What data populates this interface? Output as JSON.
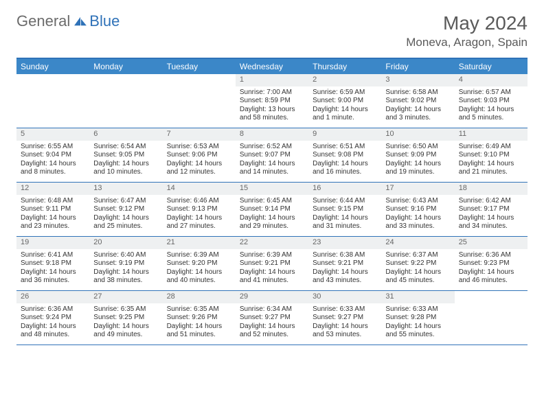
{
  "brand": {
    "part1": "General",
    "part2": "Blue"
  },
  "title": "May 2024",
  "location": "Moneva, Aragon, Spain",
  "colors": {
    "accent": "#3b87c8",
    "accent_dark": "#2f72b8",
    "daynum_bg": "#eef0f1",
    "text": "#333333",
    "muted": "#6b6b6b"
  },
  "dow": [
    "Sunday",
    "Monday",
    "Tuesday",
    "Wednesday",
    "Thursday",
    "Friday",
    "Saturday"
  ],
  "weeks": [
    [
      {
        "empty": true
      },
      {
        "empty": true
      },
      {
        "empty": true
      },
      {
        "n": "1",
        "sunrise": "7:00 AM",
        "sunset": "8:59 PM",
        "daylight": "13 hours and 58 minutes."
      },
      {
        "n": "2",
        "sunrise": "6:59 AM",
        "sunset": "9:00 PM",
        "daylight": "14 hours and 1 minute."
      },
      {
        "n": "3",
        "sunrise": "6:58 AM",
        "sunset": "9:02 PM",
        "daylight": "14 hours and 3 minutes."
      },
      {
        "n": "4",
        "sunrise": "6:57 AM",
        "sunset": "9:03 PM",
        "daylight": "14 hours and 5 minutes."
      }
    ],
    [
      {
        "n": "5",
        "sunrise": "6:55 AM",
        "sunset": "9:04 PM",
        "daylight": "14 hours and 8 minutes."
      },
      {
        "n": "6",
        "sunrise": "6:54 AM",
        "sunset": "9:05 PM",
        "daylight": "14 hours and 10 minutes."
      },
      {
        "n": "7",
        "sunrise": "6:53 AM",
        "sunset": "9:06 PM",
        "daylight": "14 hours and 12 minutes."
      },
      {
        "n": "8",
        "sunrise": "6:52 AM",
        "sunset": "9:07 PM",
        "daylight": "14 hours and 14 minutes."
      },
      {
        "n": "9",
        "sunrise": "6:51 AM",
        "sunset": "9:08 PM",
        "daylight": "14 hours and 16 minutes."
      },
      {
        "n": "10",
        "sunrise": "6:50 AM",
        "sunset": "9:09 PM",
        "daylight": "14 hours and 19 minutes."
      },
      {
        "n": "11",
        "sunrise": "6:49 AM",
        "sunset": "9:10 PM",
        "daylight": "14 hours and 21 minutes."
      }
    ],
    [
      {
        "n": "12",
        "sunrise": "6:48 AM",
        "sunset": "9:11 PM",
        "daylight": "14 hours and 23 minutes."
      },
      {
        "n": "13",
        "sunrise": "6:47 AM",
        "sunset": "9:12 PM",
        "daylight": "14 hours and 25 minutes."
      },
      {
        "n": "14",
        "sunrise": "6:46 AM",
        "sunset": "9:13 PM",
        "daylight": "14 hours and 27 minutes."
      },
      {
        "n": "15",
        "sunrise": "6:45 AM",
        "sunset": "9:14 PM",
        "daylight": "14 hours and 29 minutes."
      },
      {
        "n": "16",
        "sunrise": "6:44 AM",
        "sunset": "9:15 PM",
        "daylight": "14 hours and 31 minutes."
      },
      {
        "n": "17",
        "sunrise": "6:43 AM",
        "sunset": "9:16 PM",
        "daylight": "14 hours and 33 minutes."
      },
      {
        "n": "18",
        "sunrise": "6:42 AM",
        "sunset": "9:17 PM",
        "daylight": "14 hours and 34 minutes."
      }
    ],
    [
      {
        "n": "19",
        "sunrise": "6:41 AM",
        "sunset": "9:18 PM",
        "daylight": "14 hours and 36 minutes."
      },
      {
        "n": "20",
        "sunrise": "6:40 AM",
        "sunset": "9:19 PM",
        "daylight": "14 hours and 38 minutes."
      },
      {
        "n": "21",
        "sunrise": "6:39 AM",
        "sunset": "9:20 PM",
        "daylight": "14 hours and 40 minutes."
      },
      {
        "n": "22",
        "sunrise": "6:39 AM",
        "sunset": "9:21 PM",
        "daylight": "14 hours and 41 minutes."
      },
      {
        "n": "23",
        "sunrise": "6:38 AM",
        "sunset": "9:21 PM",
        "daylight": "14 hours and 43 minutes."
      },
      {
        "n": "24",
        "sunrise": "6:37 AM",
        "sunset": "9:22 PM",
        "daylight": "14 hours and 45 minutes."
      },
      {
        "n": "25",
        "sunrise": "6:36 AM",
        "sunset": "9:23 PM",
        "daylight": "14 hours and 46 minutes."
      }
    ],
    [
      {
        "n": "26",
        "sunrise": "6:36 AM",
        "sunset": "9:24 PM",
        "daylight": "14 hours and 48 minutes."
      },
      {
        "n": "27",
        "sunrise": "6:35 AM",
        "sunset": "9:25 PM",
        "daylight": "14 hours and 49 minutes."
      },
      {
        "n": "28",
        "sunrise": "6:35 AM",
        "sunset": "9:26 PM",
        "daylight": "14 hours and 51 minutes."
      },
      {
        "n": "29",
        "sunrise": "6:34 AM",
        "sunset": "9:27 PM",
        "daylight": "14 hours and 52 minutes."
      },
      {
        "n": "30",
        "sunrise": "6:33 AM",
        "sunset": "9:27 PM",
        "daylight": "14 hours and 53 minutes."
      },
      {
        "n": "31",
        "sunrise": "6:33 AM",
        "sunset": "9:28 PM",
        "daylight": "14 hours and 55 minutes."
      },
      {
        "empty": true
      }
    ]
  ],
  "labels": {
    "sunrise": "Sunrise:",
    "sunset": "Sunset:",
    "daylight": "Daylight:"
  }
}
